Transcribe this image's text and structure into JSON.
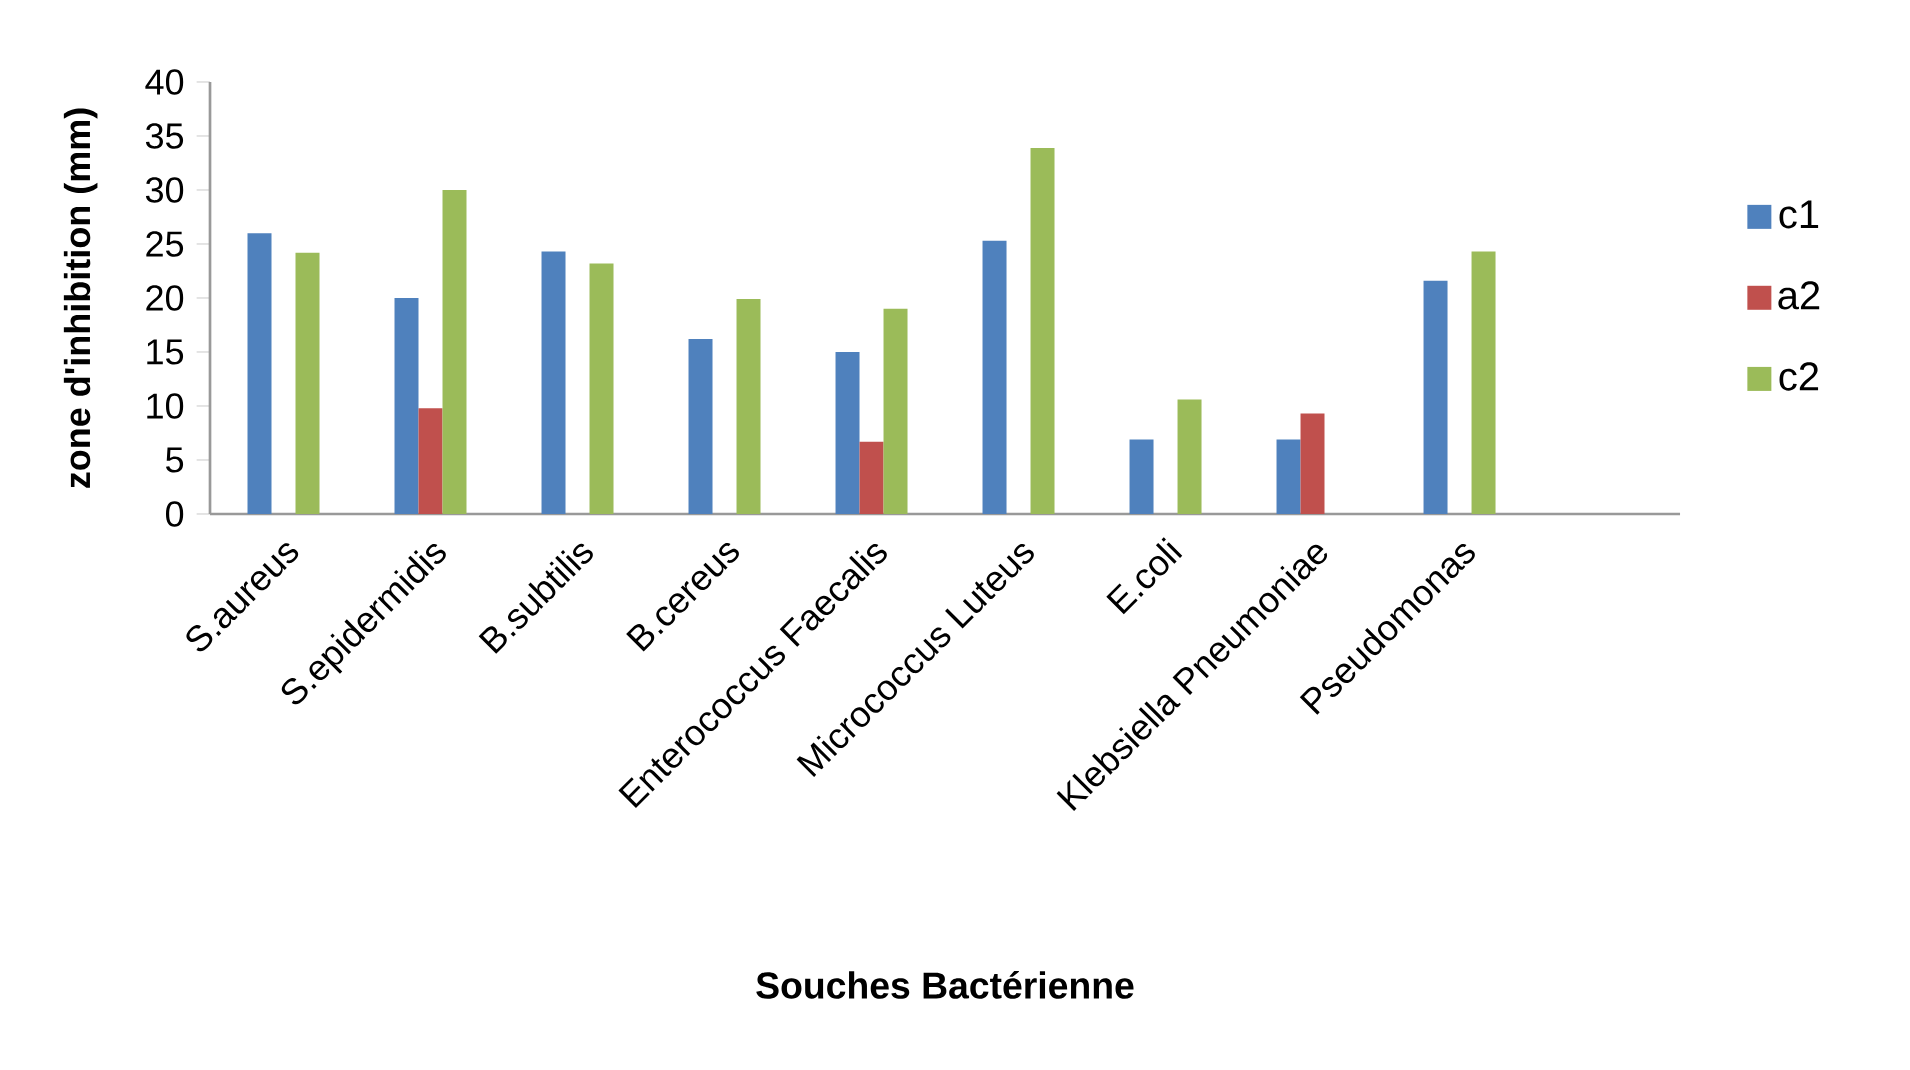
{
  "chart_data": {
    "type": "bar",
    "xlabel": "Souches Bactérienne",
    "ylabel": "zone d'inhibition (mm)",
    "categories": [
      "S.aureus",
      "S.epidermidis",
      "B.subtilis",
      "B.cereus",
      "Enterococcus Faecalis",
      "Micrococcus Luteus",
      "E.coli",
      "Klebsiella Pneumoniae",
      "Pseudomonas",
      null
    ],
    "series": [
      {
        "name": "c1",
        "color": "#4f81bd",
        "values": [
          26,
          20,
          24.3,
          16.2,
          15,
          25.3,
          6.9,
          6.9,
          21.6,
          null
        ]
      },
      {
        "name": "a2",
        "color": "#c0504d",
        "values": [
          null,
          9.8,
          null,
          null,
          6.7,
          null,
          null,
          9.3,
          null,
          null
        ]
      },
      {
        "name": "c2",
        "color": "#9bbb59",
        "values": [
          24.2,
          30,
          23.2,
          19.9,
          19,
          33.9,
          10.6,
          null,
          24.3,
          null
        ]
      }
    ],
    "ylim": [
      0,
      40
    ],
    "yticks": [
      0,
      5,
      10,
      15,
      20,
      25,
      30,
      35,
      40
    ],
    "grid": false,
    "legend": "right"
  }
}
